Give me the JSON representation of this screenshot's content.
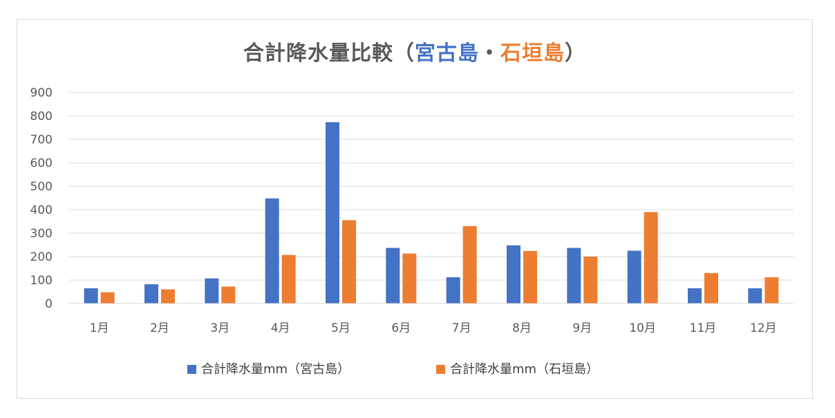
{
  "colors": {
    "miyako": "#4472c4",
    "ishigaki": "#ed7d31",
    "title": "#595959",
    "grid": "#d9d9d9"
  },
  "chart_data": {
    "type": "bar",
    "title": {
      "prefix": "合計降水量比較（",
      "miyako": "宮古島",
      "separator": "・",
      "ishigaki": "石垣島",
      "suffix": "）"
    },
    "categories": [
      "1月",
      "2月",
      "3月",
      "4月",
      "5月",
      "6月",
      "7月",
      "8月",
      "9月",
      "10月",
      "11月",
      "12月"
    ],
    "series": [
      {
        "name": "合計降水量mm（宮古島）",
        "values": [
          65,
          82,
          107,
          448,
          773,
          237,
          112,
          248,
          237,
          225,
          65,
          65
        ]
      },
      {
        "name": "合計降水量mm（石垣島）",
        "values": [
          48,
          60,
          72,
          207,
          355,
          213,
          330,
          224,
          200,
          390,
          130,
          112
        ]
      }
    ],
    "yticks": [
      0,
      100,
      200,
      300,
      400,
      500,
      600,
      700,
      800,
      900
    ],
    "ylim": [
      0,
      900
    ],
    "grid": true,
    "legend": "bottom"
  }
}
